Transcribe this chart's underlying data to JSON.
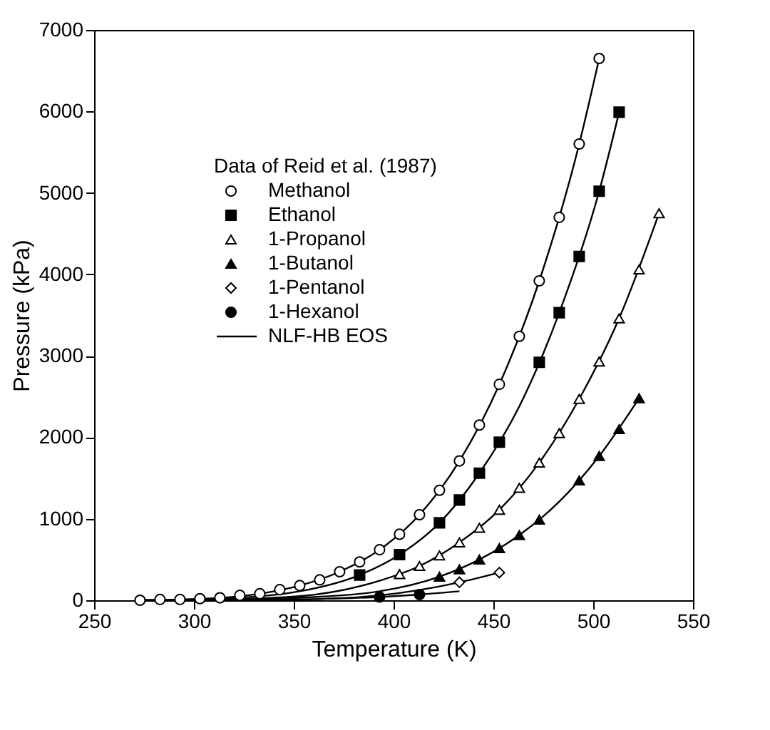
{
  "chart_data": {
    "type": "scatter",
    "xlabel": "Temperature (K)",
    "ylabel": "Pressure (kPa)",
    "legend_title": "Data of Reid et al. (1987)",
    "legend": "top left",
    "grid": false,
    "xlim": [
      250,
      550
    ],
    "xticks": [
      250,
      300,
      350,
      400,
      450,
      500,
      550
    ],
    "ylim": [
      0,
      7000
    ],
    "yticks": [
      0,
      1000,
      2000,
      3000,
      4000,
      5000,
      6000,
      7000
    ],
    "series": [
      {
        "name": "Methanol",
        "marker": "circle",
        "color": "#ffffff",
        "x": [
          273,
          283,
          293,
          303,
          313,
          323,
          333,
          343,
          353,
          363,
          373,
          383,
          393,
          403,
          413,
          423,
          433,
          443,
          453,
          463,
          473,
          483,
          493,
          503
        ],
        "values": [
          0,
          10,
          10,
          20,
          30,
          60,
          80,
          130,
          180,
          250,
          350,
          470,
          620,
          810,
          1050,
          1350,
          1710,
          2150,
          2650,
          3240,
          3920,
          4700,
          5600,
          6650
        ]
      },
      {
        "name": "Ethanol",
        "marker": "square",
        "color": "#000000",
        "x": [
          383,
          403,
          423,
          433,
          443,
          453,
          473,
          483,
          493,
          503,
          513
        ],
        "values": [
          310,
          560,
          950,
          1230,
          1560,
          1940,
          2920,
          3530,
          4220,
          5020,
          5990
        ]
      },
      {
        "name": "1-Propanol",
        "marker": "triangle",
        "color": "#ffffff",
        "x": [
          403,
          413,
          423,
          433,
          443,
          453,
          463,
          473,
          483,
          493,
          503,
          513,
          523,
          533
        ],
        "values": [
          320,
          420,
          550,
          710,
          890,
          1110,
          1380,
          1690,
          2050,
          2470,
          2930,
          3460,
          4060,
          4750
        ]
      },
      {
        "name": "1-Butanol",
        "marker": "triangle",
        "color": "#000000",
        "x": [
          423,
          433,
          443,
          453,
          463,
          473,
          493,
          503,
          513,
          523
        ],
        "values": [
          290,
          380,
          500,
          640,
          800,
          990,
          1470,
          1770,
          2100,
          2480
        ]
      },
      {
        "name": "1-Pentanol",
        "marker": "diamond",
        "color": "#ffffff",
        "x": [
          433,
          453
        ],
        "values": [
          220,
          340
        ]
      },
      {
        "name": "1-Hexanol",
        "marker": "circle",
        "color": "#000000",
        "x": [
          393,
          413
        ],
        "values": [
          40,
          70
        ]
      },
      {
        "name": "NLF-HB EOS",
        "type": "line",
        "color": "#000000",
        "x": [
          273,
          293,
          313,
          333,
          353,
          373,
          393,
          413,
          433,
          453,
          473,
          493,
          503
        ],
        "values": [
          0,
          10,
          30,
          80,
          180,
          350,
          620,
          1050,
          1710,
          2650,
          3920,
          5600,
          6650
        ]
      },
      {
        "type": "line",
        "color": "#000000",
        "x": [
          273,
          313,
          353,
          383,
          403,
          423,
          443,
          463,
          483,
          503,
          513
        ],
        "values": [
          0,
          20,
          110,
          310,
          560,
          950,
          1560,
          2380,
          3530,
          5020,
          5990
        ]
      },
      {
        "type": "line",
        "color": "#000000",
        "x": [
          273,
          313,
          353,
          393,
          413,
          433,
          453,
          473,
          493,
          513,
          533
        ],
        "values": [
          0,
          10,
          50,
          240,
          420,
          710,
          1110,
          1690,
          2470,
          3460,
          4750
        ]
      },
      {
        "type": "line",
        "color": "#000000",
        "x": [
          273,
          313,
          353,
          393,
          423,
          443,
          463,
          483,
          503,
          523
        ],
        "values": [
          0,
          0,
          30,
          110,
          290,
          500,
          800,
          1210,
          1770,
          2480
        ]
      },
      {
        "type": "line",
        "color": "#000000",
        "x": [
          273,
          313,
          353,
          393,
          433,
          453
        ],
        "values": [
          0,
          0,
          10,
          60,
          220,
          340
        ]
      },
      {
        "type": "line",
        "color": "#000000",
        "x": [
          273,
          313,
          353,
          393,
          413,
          433
        ],
        "values": [
          0,
          0,
          10,
          40,
          70,
          110
        ]
      }
    ]
  }
}
